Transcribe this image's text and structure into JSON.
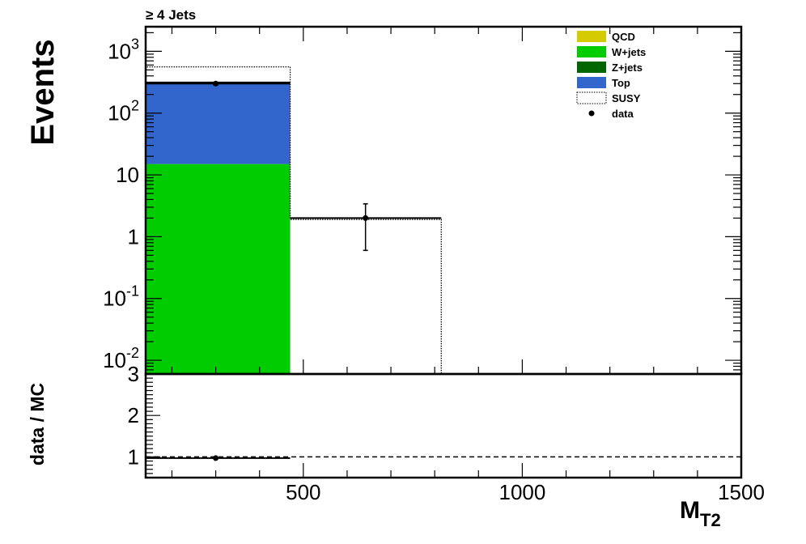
{
  "chart_data": [
    {
      "type": "bar",
      "title": "≥ 4 Jets",
      "ylabel": "Events",
      "xlabel": "M",
      "xlabel_sub": "T2",
      "x_range": [
        140,
        1500
      ],
      "y_range": [
        0.006,
        2500
      ],
      "y_scale": "log",
      "y_ticks": [
        {
          "value": 0.01,
          "base": "10",
          "exp": "-2"
        },
        {
          "value": 0.1,
          "base": "10",
          "exp": "-1"
        },
        {
          "value": 1,
          "base": "1",
          "exp": ""
        },
        {
          "value": 10,
          "base": "10",
          "exp": ""
        },
        {
          "value": 100,
          "base": "10",
          "exp": "2"
        },
        {
          "value": 1000,
          "base": "10",
          "exp": "3"
        }
      ],
      "bins": [
        {
          "lo": 140,
          "hi": 470
        },
        {
          "lo": 470,
          "hi": 815
        }
      ],
      "stack": [
        {
          "name": "QCD",
          "color": "#d4cc00",
          "values": [
            0,
            0
          ]
        },
        {
          "name": "W+jets",
          "color": "#00cc00",
          "values": [
            15,
            0
          ]
        },
        {
          "name": "Z+jets",
          "color": "#006600",
          "values": [
            0,
            0
          ]
        },
        {
          "name": "Top",
          "color": "#3366cc",
          "values": [
            300,
            0
          ]
        }
      ],
      "susy": {
        "name": "SUSY",
        "values": [
          560,
          1.9
        ]
      },
      "data": {
        "name": "data",
        "points": [
          {
            "x": 300,
            "y": 300,
            "xerr": [
              140,
              470
            ],
            "yerr": [
              283,
              317
            ]
          },
          {
            "x": 642,
            "y": 2,
            "xerr": [
              470,
              815
            ],
            "yerr": [
              0.6,
              3.4
            ]
          }
        ]
      },
      "legend": {
        "placement": "top-right",
        "entries": [
          {
            "label": "QCD",
            "color": "#d4cc00",
            "style": "fill"
          },
          {
            "label": "W+jets",
            "color": "#00cc00",
            "style": "fill"
          },
          {
            "label": "Z+jets",
            "color": "#006600",
            "style": "fill"
          },
          {
            "label": "Top",
            "color": "#3366cc",
            "style": "fill"
          },
          {
            "label": "SUSY",
            "color": "#000000",
            "style": "dotted"
          },
          {
            "label": "data",
            "color": "#000000",
            "style": "marker"
          }
        ]
      }
    },
    {
      "type": "scatter",
      "ylabel": "data / MC",
      "y_range": [
        0.5,
        3
      ],
      "y_ticks": [
        "1",
        "2",
        "3"
      ],
      "x_range": [
        140,
        1500
      ],
      "x_ticks": [
        "500",
        "1000",
        "1500"
      ],
      "reference_line": 1,
      "points": [
        {
          "x": 300,
          "y": 0.97,
          "xerr": [
            140,
            470
          ]
        }
      ]
    }
  ]
}
